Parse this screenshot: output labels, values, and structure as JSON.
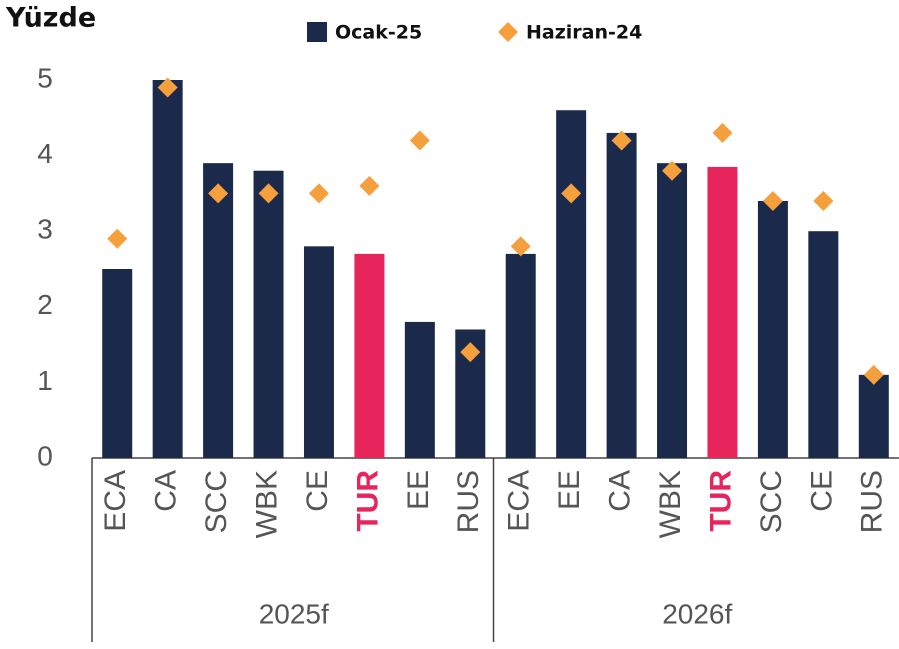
{
  "chart_data": {
    "type": "bar",
    "title": "Yüzde",
    "groups": [
      {
        "name": "2025f",
        "categories": [
          "ECA",
          "CA",
          "SCC",
          "WBK",
          "CE",
          "TUR",
          "EE",
          "RUS"
        ]
      },
      {
        "name": "2026f",
        "categories": [
          "ECA",
          "EE",
          "CA",
          "WBK",
          "TUR",
          "SCC",
          "CE",
          "RUS"
        ]
      }
    ],
    "series": [
      {
        "name": "Ocak-25",
        "type": "bar",
        "color": "#1b2a4a",
        "colors": [
          "#1b2a4a",
          "#1b2a4a",
          "#1b2a4a",
          "#1b2a4a",
          "#1b2a4a",
          "#e8245c",
          "#1b2a4a",
          "#1b2a4a",
          "#1b2a4a",
          "#1b2a4a",
          "#1b2a4a",
          "#1b2a4a",
          "#e8245c",
          "#1b2a4a",
          "#1b2a4a",
          "#1b2a4a"
        ],
        "values": [
          2.5,
          5.0,
          3.9,
          3.8,
          2.8,
          2.7,
          1.8,
          1.7,
          2.7,
          4.6,
          4.3,
          3.9,
          3.85,
          3.4,
          3.0,
          1.1
        ]
      },
      {
        "name": "Haziran-24",
        "type": "diamond",
        "color": "#f5a03c",
        "values": [
          2.9,
          4.9,
          3.5,
          3.5,
          3.5,
          3.6,
          4.2,
          1.4,
          2.8,
          3.5,
          4.2,
          3.8,
          4.3,
          3.4,
          3.4,
          1.1
        ]
      }
    ],
    "ylim": [
      0,
      5
    ],
    "yticks": [
      0,
      1,
      2,
      3,
      4,
      5
    ],
    "grid": false
  }
}
